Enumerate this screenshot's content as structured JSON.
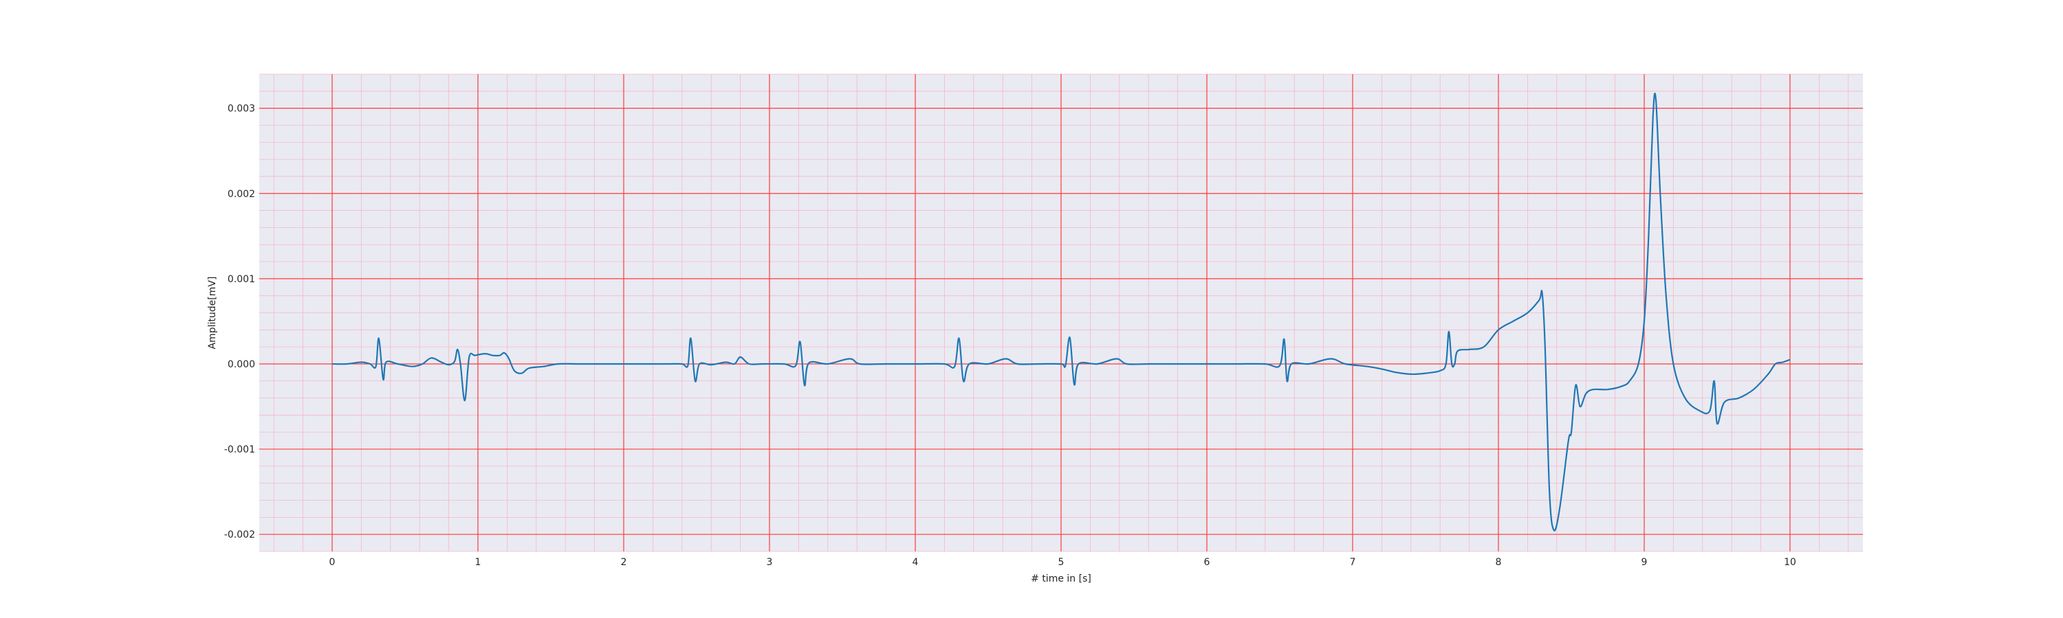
{
  "chart_data": {
    "type": "line",
    "title": "",
    "xlabel": "# time in [s]",
    "ylabel": "Amplitude[mV]",
    "xlim": [
      -0.5,
      10.5
    ],
    "ylim": [
      -0.0022,
      0.0034
    ],
    "x_ticks": [
      0,
      1,
      2,
      3,
      4,
      5,
      6,
      7,
      8,
      9,
      10
    ],
    "x_tick_labels": [
      "0",
      "1",
      "2",
      "3",
      "4",
      "5",
      "6",
      "7",
      "8",
      "9",
      "10"
    ],
    "y_ticks": [
      -0.002,
      -0.001,
      0.0,
      0.001,
      0.002,
      0.003
    ],
    "y_tick_labels": [
      "-0.002",
      "-0.001",
      "0.000",
      "0.001",
      "0.002",
      "0.003"
    ],
    "grid": true,
    "minor_grid": true,
    "colors": {
      "background": "#eaeaf2",
      "major_grid": "#ff3b3b",
      "minor_grid": "#f6b8c4",
      "line": "#1f77b4"
    },
    "series": [
      {
        "color": "#1f77b4",
        "points": [
          [
            0.0,
            0.0
          ],
          [
            0.1,
            0.0
          ],
          [
            0.2,
            2e-05
          ],
          [
            0.26,
            0.0
          ],
          [
            0.3,
            -3e-05
          ],
          [
            0.32,
            0.0003
          ],
          [
            0.35,
            -0.00018
          ],
          [
            0.37,
            2e-05
          ],
          [
            0.45,
            0.0
          ],
          [
            0.55,
            -3e-05
          ],
          [
            0.62,
            0.0
          ],
          [
            0.68,
            7e-05
          ],
          [
            0.75,
            2e-05
          ],
          [
            0.8,
            -1e-05
          ],
          [
            0.84,
            3e-05
          ],
          [
            0.86,
            0.00017
          ],
          [
            0.88,
            -0.0
          ],
          [
            0.91,
            -0.00043
          ],
          [
            0.94,
            8e-05
          ],
          [
            0.98,
            0.0001
          ],
          [
            1.05,
            0.00012
          ],
          [
            1.1,
            0.0001
          ],
          [
            1.15,
            0.0001
          ],
          [
            1.18,
            0.00013
          ],
          [
            1.21,
            7e-05
          ],
          [
            1.25,
            -8e-05
          ],
          [
            1.3,
            -0.00011
          ],
          [
            1.35,
            -5e-05
          ],
          [
            1.45,
            -3e-05
          ],
          [
            1.55,
            0.0
          ],
          [
            1.7,
            0.0
          ],
          [
            1.85,
            0.0
          ],
          [
            2.0,
            0.0
          ],
          [
            2.15,
            0.0
          ],
          [
            2.3,
            0.0
          ],
          [
            2.4,
            0.0
          ],
          [
            2.44,
            -2e-05
          ],
          [
            2.46,
            0.0003
          ],
          [
            2.49,
            -0.0002
          ],
          [
            2.52,
            0.0
          ],
          [
            2.6,
            -1e-05
          ],
          [
            2.7,
            2e-05
          ],
          [
            2.76,
            0.0
          ],
          [
            2.8,
            8e-05
          ],
          [
            2.86,
            0.0
          ],
          [
            2.95,
            0.0
          ],
          [
            3.1,
            0.0
          ],
          [
            3.18,
            -2e-05
          ],
          [
            3.21,
            0.00026
          ],
          [
            3.24,
            -0.00025
          ],
          [
            3.27,
            1e-05
          ],
          [
            3.4,
            0.0
          ],
          [
            3.55,
            6e-05
          ],
          [
            3.62,
            0.0
          ],
          [
            3.8,
            0.0
          ],
          [
            4.0,
            0.0
          ],
          [
            4.2,
            0.0
          ],
          [
            4.27,
            -3e-05
          ],
          [
            4.3,
            0.0003
          ],
          [
            4.33,
            -0.0002
          ],
          [
            4.37,
            0.0
          ],
          [
            4.5,
            0.0
          ],
          [
            4.62,
            6e-05
          ],
          [
            4.7,
            0.0
          ],
          [
            4.85,
            0.0
          ],
          [
            5.0,
            0.0
          ],
          [
            5.03,
            -2e-05
          ],
          [
            5.06,
            0.00031
          ],
          [
            5.09,
            -0.00024
          ],
          [
            5.12,
            0.0
          ],
          [
            5.25,
            0.0
          ],
          [
            5.38,
            6e-05
          ],
          [
            5.45,
            0.0
          ],
          [
            5.6,
            0.0
          ],
          [
            5.8,
            0.0
          ],
          [
            6.0,
            0.0
          ],
          [
            6.2,
            0.0
          ],
          [
            6.4,
            0.0
          ],
          [
            6.5,
            -2e-05
          ],
          [
            6.53,
            0.00029
          ],
          [
            6.55,
            -0.0002
          ],
          [
            6.58,
            0.0
          ],
          [
            6.7,
            0.0
          ],
          [
            6.85,
            6e-05
          ],
          [
            6.95,
            0.0
          ],
          [
            7.1,
            -3e-05
          ],
          [
            7.2,
            -6e-05
          ],
          [
            7.3,
            -0.0001
          ],
          [
            7.4,
            -0.00012
          ],
          [
            7.5,
            -0.00011
          ],
          [
            7.6,
            -8e-05
          ],
          [
            7.64,
            0.0
          ],
          [
            7.66,
            0.00038
          ],
          [
            7.68,
            0.0
          ],
          [
            7.7,
            0.0
          ],
          [
            7.72,
            0.00015
          ],
          [
            7.8,
            0.00017
          ],
          [
            7.9,
            0.0002
          ],
          [
            8.0,
            0.0004
          ],
          [
            8.1,
            0.0005
          ],
          [
            8.2,
            0.0006
          ],
          [
            8.28,
            0.00075
          ],
          [
            8.3,
            0.00083
          ],
          [
            8.32,
            0.0002
          ],
          [
            8.35,
            -0.0015
          ],
          [
            8.38,
            -0.00195
          ],
          [
            8.42,
            -0.0017
          ],
          [
            8.48,
            -0.0009
          ],
          [
            8.5,
            -0.0008
          ],
          [
            8.53,
            -0.00025
          ],
          [
            8.56,
            -0.0005
          ],
          [
            8.6,
            -0.00035
          ],
          [
            8.65,
            -0.0003
          ],
          [
            8.75,
            -0.0003
          ],
          [
            8.85,
            -0.00026
          ],
          [
            8.9,
            -0.0002
          ],
          [
            8.96,
            0.0
          ],
          [
            9.0,
            0.0005
          ],
          [
            9.03,
            0.0015
          ],
          [
            9.06,
            0.0029
          ],
          [
            9.08,
            0.0031
          ],
          [
            9.11,
            0.002
          ],
          [
            9.15,
            0.0008
          ],
          [
            9.2,
            0.0
          ],
          [
            9.28,
            -0.0004
          ],
          [
            9.38,
            -0.00055
          ],
          [
            9.45,
            -0.00055
          ],
          [
            9.48,
            -0.0002
          ],
          [
            9.5,
            -0.0007
          ],
          [
            9.55,
            -0.00045
          ],
          [
            9.65,
            -0.0004
          ],
          [
            9.75,
            -0.0003
          ],
          [
            9.85,
            -0.00012
          ],
          [
            9.9,
            0.0
          ],
          [
            9.95,
            2e-05
          ],
          [
            10.0,
            5e-05
          ]
        ]
      }
    ]
  }
}
